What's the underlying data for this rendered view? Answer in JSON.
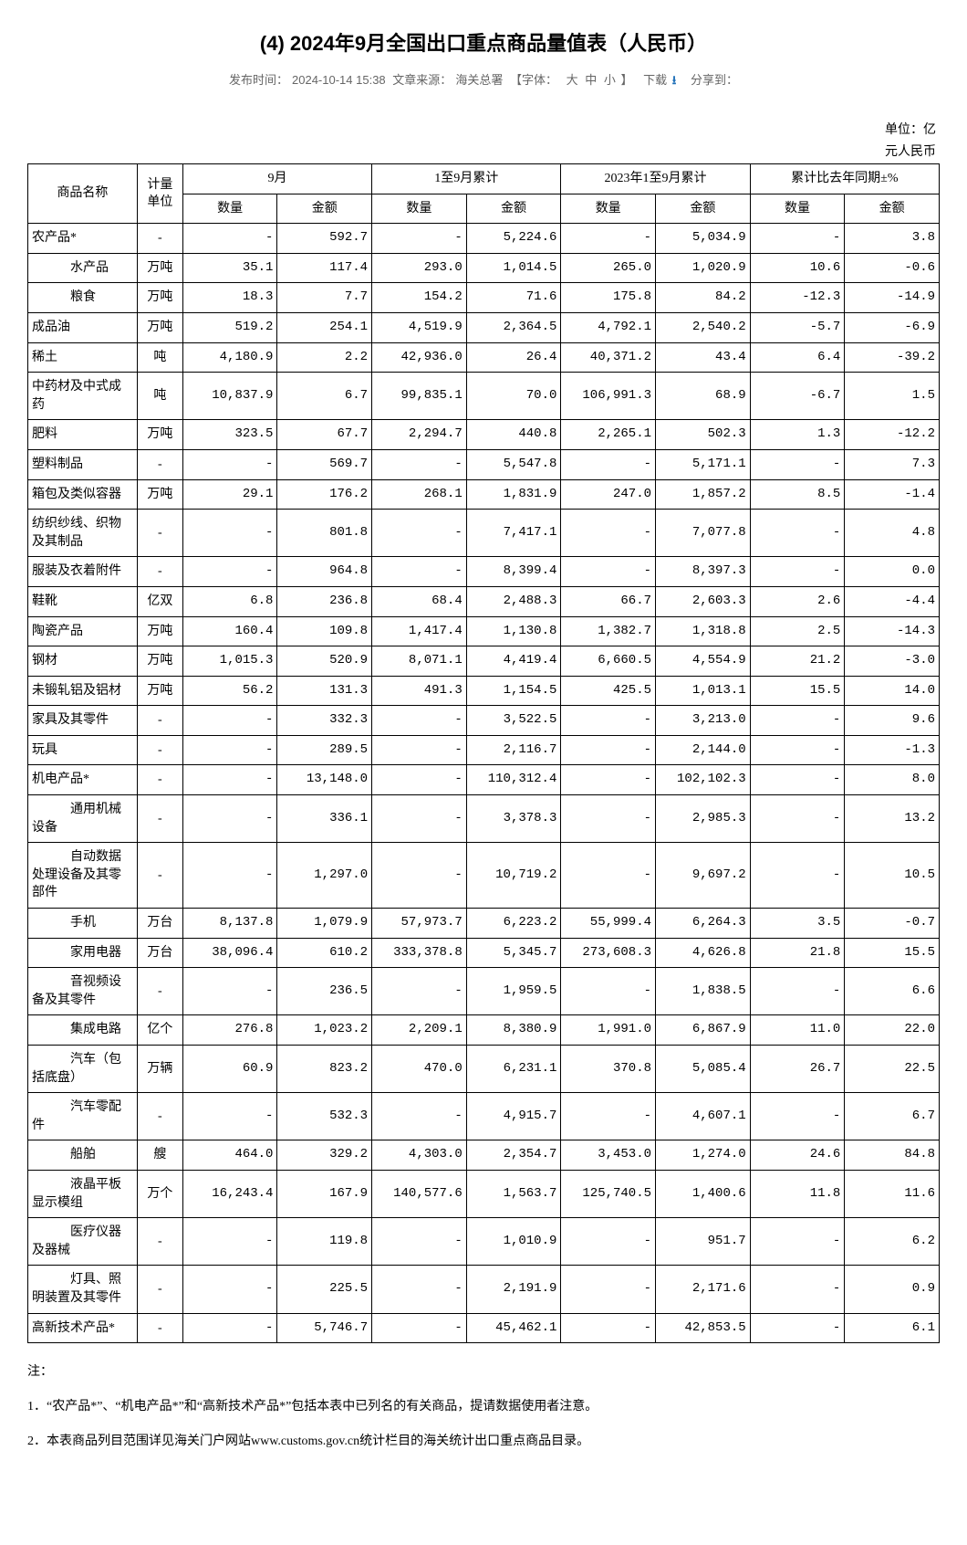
{
  "title": "(4) 2024年9月全国出口重点商品量值表（人民币）",
  "meta": {
    "pub_label": "发布时间：",
    "pub_time": "2024-10-14 15:38",
    "src_label": "文章来源：",
    "src": "海关总署",
    "font_label": "【字体：",
    "font_large": "大",
    "font_medium": "中",
    "font_small": "小",
    "font_close": "】",
    "download": "下载",
    "share": "分享到："
  },
  "unit_line1": "单位：亿",
  "unit_line2": "元人民币",
  "columns": {
    "name": "商品名称",
    "unit": "计量单位",
    "sep": "9月",
    "ytd": "1至9月累计",
    "prev_ytd": "2023年1至9月累计",
    "yoy": "累计比去年同期±%",
    "qty": "数量",
    "val": "金额"
  },
  "rows": [
    {
      "name": "农产品*",
      "unit": "-",
      "indent": false,
      "sep_q": "-",
      "sep_v": "592.7",
      "ytd_q": "-",
      "ytd_v": "5,224.6",
      "prev_q": "-",
      "prev_v": "5,034.9",
      "yoy_q": "-",
      "yoy_v": "3.8"
    },
    {
      "name": "水产品",
      "unit": "万吨",
      "indent": true,
      "sep_q": "35.1",
      "sep_v": "117.4",
      "ytd_q": "293.0",
      "ytd_v": "1,014.5",
      "prev_q": "265.0",
      "prev_v": "1,020.9",
      "yoy_q": "10.6",
      "yoy_v": "-0.6"
    },
    {
      "name": "粮食",
      "unit": "万吨",
      "indent": true,
      "sep_q": "18.3",
      "sep_v": "7.7",
      "ytd_q": "154.2",
      "ytd_v": "71.6",
      "prev_q": "175.8",
      "prev_v": "84.2",
      "yoy_q": "-12.3",
      "yoy_v": "-14.9"
    },
    {
      "name": "成品油",
      "unit": "万吨",
      "indent": false,
      "sep_q": "519.2",
      "sep_v": "254.1",
      "ytd_q": "4,519.9",
      "ytd_v": "2,364.5",
      "prev_q": "4,792.1",
      "prev_v": "2,540.2",
      "yoy_q": "-5.7",
      "yoy_v": "-6.9"
    },
    {
      "name": "稀土",
      "unit": "吨",
      "indent": false,
      "sep_q": "4,180.9",
      "sep_v": "2.2",
      "ytd_q": "42,936.0",
      "ytd_v": "26.4",
      "prev_q": "40,371.2",
      "prev_v": "43.4",
      "yoy_q": "6.4",
      "yoy_v": "-39.2"
    },
    {
      "name": "中药材及中式成药",
      "unit": "吨",
      "indent": false,
      "sep_q": "10,837.9",
      "sep_v": "6.7",
      "ytd_q": "99,835.1",
      "ytd_v": "70.0",
      "prev_q": "106,991.3",
      "prev_v": "68.9",
      "yoy_q": "-6.7",
      "yoy_v": "1.5"
    },
    {
      "name": "肥料",
      "unit": "万吨",
      "indent": false,
      "sep_q": "323.5",
      "sep_v": "67.7",
      "ytd_q": "2,294.7",
      "ytd_v": "440.8",
      "prev_q": "2,265.1",
      "prev_v": "502.3",
      "yoy_q": "1.3",
      "yoy_v": "-12.2"
    },
    {
      "name": "塑料制品",
      "unit": "-",
      "indent": false,
      "sep_q": "-",
      "sep_v": "569.7",
      "ytd_q": "-",
      "ytd_v": "5,547.8",
      "prev_q": "-",
      "prev_v": "5,171.1",
      "yoy_q": "-",
      "yoy_v": "7.3"
    },
    {
      "name": "箱包及类似容器",
      "unit": "万吨",
      "indent": false,
      "sep_q": "29.1",
      "sep_v": "176.2",
      "ytd_q": "268.1",
      "ytd_v": "1,831.9",
      "prev_q": "247.0",
      "prev_v": "1,857.2",
      "yoy_q": "8.5",
      "yoy_v": "-1.4"
    },
    {
      "name": "纺织纱线、织物及其制品",
      "unit": "-",
      "indent": false,
      "sep_q": "-",
      "sep_v": "801.8",
      "ytd_q": "-",
      "ytd_v": "7,417.1",
      "prev_q": "-",
      "prev_v": "7,077.8",
      "yoy_q": "-",
      "yoy_v": "4.8"
    },
    {
      "name": "服装及衣着附件",
      "unit": "-",
      "indent": false,
      "sep_q": "-",
      "sep_v": "964.8",
      "ytd_q": "-",
      "ytd_v": "8,399.4",
      "prev_q": "-",
      "prev_v": "8,397.3",
      "yoy_q": "-",
      "yoy_v": "0.0"
    },
    {
      "name": "鞋靴",
      "unit": "亿双",
      "indent": false,
      "sep_q": "6.8",
      "sep_v": "236.8",
      "ytd_q": "68.4",
      "ytd_v": "2,488.3",
      "prev_q": "66.7",
      "prev_v": "2,603.3",
      "yoy_q": "2.6",
      "yoy_v": "-4.4"
    },
    {
      "name": "陶瓷产品",
      "unit": "万吨",
      "indent": false,
      "sep_q": "160.4",
      "sep_v": "109.8",
      "ytd_q": "1,417.4",
      "ytd_v": "1,130.8",
      "prev_q": "1,382.7",
      "prev_v": "1,318.8",
      "yoy_q": "2.5",
      "yoy_v": "-14.3"
    },
    {
      "name": "钢材",
      "unit": "万吨",
      "indent": false,
      "sep_q": "1,015.3",
      "sep_v": "520.9",
      "ytd_q": "8,071.1",
      "ytd_v": "4,419.4",
      "prev_q": "6,660.5",
      "prev_v": "4,554.9",
      "yoy_q": "21.2",
      "yoy_v": "-3.0"
    },
    {
      "name": "未锻轧铝及铝材",
      "unit": "万吨",
      "indent": false,
      "sep_q": "56.2",
      "sep_v": "131.3",
      "ytd_q": "491.3",
      "ytd_v": "1,154.5",
      "prev_q": "425.5",
      "prev_v": "1,013.1",
      "yoy_q": "15.5",
      "yoy_v": "14.0"
    },
    {
      "name": "家具及其零件",
      "unit": "-",
      "indent": false,
      "sep_q": "-",
      "sep_v": "332.3",
      "ytd_q": "-",
      "ytd_v": "3,522.5",
      "prev_q": "-",
      "prev_v": "3,213.0",
      "yoy_q": "-",
      "yoy_v": "9.6"
    },
    {
      "name": "玩具",
      "unit": "-",
      "indent": false,
      "sep_q": "-",
      "sep_v": "289.5",
      "ytd_q": "-",
      "ytd_v": "2,116.7",
      "prev_q": "-",
      "prev_v": "2,144.0",
      "yoy_q": "-",
      "yoy_v": "-1.3"
    },
    {
      "name": "机电产品*",
      "unit": "-",
      "indent": false,
      "sep_q": "-",
      "sep_v": "13,148.0",
      "ytd_q": "-",
      "ytd_v": "110,312.4",
      "prev_q": "-",
      "prev_v": "102,102.3",
      "yoy_q": "-",
      "yoy_v": "8.0"
    },
    {
      "name": "通用机械设备",
      "unit": "-",
      "indent": true,
      "sep_q": "-",
      "sep_v": "336.1",
      "ytd_q": "-",
      "ytd_v": "3,378.3",
      "prev_q": "-",
      "prev_v": "2,985.3",
      "yoy_q": "-",
      "yoy_v": "13.2"
    },
    {
      "name": "自动数据处理设备及其零部件",
      "unit": "-",
      "indent": true,
      "sep_q": "-",
      "sep_v": "1,297.0",
      "ytd_q": "-",
      "ytd_v": "10,719.2",
      "prev_q": "-",
      "prev_v": "9,697.2",
      "yoy_q": "-",
      "yoy_v": "10.5"
    },
    {
      "name": "手机",
      "unit": "万台",
      "indent": true,
      "sep_q": "8,137.8",
      "sep_v": "1,079.9",
      "ytd_q": "57,973.7",
      "ytd_v": "6,223.2",
      "prev_q": "55,999.4",
      "prev_v": "6,264.3",
      "yoy_q": "3.5",
      "yoy_v": "-0.7"
    },
    {
      "name": "家用电器",
      "unit": "万台",
      "indent": true,
      "sep_q": "38,096.4",
      "sep_v": "610.2",
      "ytd_q": "333,378.8",
      "ytd_v": "5,345.7",
      "prev_q": "273,608.3",
      "prev_v": "4,626.8",
      "yoy_q": "21.8",
      "yoy_v": "15.5"
    },
    {
      "name": "音视频设备及其零件",
      "unit": "-",
      "indent": true,
      "sep_q": "-",
      "sep_v": "236.5",
      "ytd_q": "-",
      "ytd_v": "1,959.5",
      "prev_q": "-",
      "prev_v": "1,838.5",
      "yoy_q": "-",
      "yoy_v": "6.6"
    },
    {
      "name": "集成电路",
      "unit": "亿个",
      "indent": true,
      "sep_q": "276.8",
      "sep_v": "1,023.2",
      "ytd_q": "2,209.1",
      "ytd_v": "8,380.9",
      "prev_q": "1,991.0",
      "prev_v": "6,867.9",
      "yoy_q": "11.0",
      "yoy_v": "22.0"
    },
    {
      "name": "汽车（包括底盘）",
      "unit": "万辆",
      "indent": true,
      "sep_q": "60.9",
      "sep_v": "823.2",
      "ytd_q": "470.0",
      "ytd_v": "6,231.1",
      "prev_q": "370.8",
      "prev_v": "5,085.4",
      "yoy_q": "26.7",
      "yoy_v": "22.5"
    },
    {
      "name": "汽车零配件",
      "unit": "-",
      "indent": true,
      "sep_q": "-",
      "sep_v": "532.3",
      "ytd_q": "-",
      "ytd_v": "4,915.7",
      "prev_q": "-",
      "prev_v": "4,607.1",
      "yoy_q": "-",
      "yoy_v": "6.7"
    },
    {
      "name": "船舶",
      "unit": "艘",
      "indent": true,
      "sep_q": "464.0",
      "sep_v": "329.2",
      "ytd_q": "4,303.0",
      "ytd_v": "2,354.7",
      "prev_q": "3,453.0",
      "prev_v": "1,274.0",
      "yoy_q": "24.6",
      "yoy_v": "84.8"
    },
    {
      "name": "液晶平板显示模组",
      "unit": "万个",
      "indent": true,
      "sep_q": "16,243.4",
      "sep_v": "167.9",
      "ytd_q": "140,577.6",
      "ytd_v": "1,563.7",
      "prev_q": "125,740.5",
      "prev_v": "1,400.6",
      "yoy_q": "11.8",
      "yoy_v": "11.6"
    },
    {
      "name": "医疗仪器及器械",
      "unit": "-",
      "indent": true,
      "sep_q": "-",
      "sep_v": "119.8",
      "ytd_q": "-",
      "ytd_v": "1,010.9",
      "prev_q": "-",
      "prev_v": "951.7",
      "yoy_q": "-",
      "yoy_v": "6.2"
    },
    {
      "name": "灯具、照明装置及其零件",
      "unit": "-",
      "indent": true,
      "sep_q": "-",
      "sep_v": "225.5",
      "ytd_q": "-",
      "ytd_v": "2,191.9",
      "prev_q": "-",
      "prev_v": "2,171.6",
      "yoy_q": "-",
      "yoy_v": "0.9"
    },
    {
      "name": "高新技术产品*",
      "unit": "-",
      "indent": false,
      "sep_q": "-",
      "sep_v": "5,746.7",
      "ytd_q": "-",
      "ytd_v": "45,462.1",
      "prev_q": "-",
      "prev_v": "42,853.5",
      "yoy_q": "-",
      "yoy_v": "6.1"
    }
  ],
  "notes": {
    "header": "注：",
    "n1": "1．“农产品*”、“机电产品*”和“高新技术产品*”包括本表中已列名的有关商品，提请数据使用者注意。",
    "n2": "2．本表商品列目范围详见海关门户网站www.customs.gov.cn统计栏目的海关统计出口重点商品目录。"
  }
}
